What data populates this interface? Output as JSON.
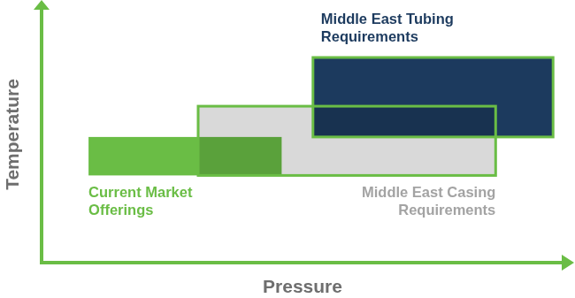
{
  "chart_data": {
    "type": "range",
    "x_label": "Pressure",
    "y_label": "Temperature",
    "xlim": [
      0,
      100
    ],
    "ylim": [
      0,
      100
    ],
    "tick_labels": false,
    "series": [
      {
        "label": [
          "Current Market",
          "Offerings"
        ],
        "color": "#6abd45",
        "x": [
          9,
          46
        ],
        "y": [
          34,
          49
        ]
      },
      {
        "label": [
          "Middle East Casing",
          "Requirements"
        ],
        "color": "#d9d9d9",
        "x": [
          30,
          87
        ],
        "y": [
          34,
          61
        ]
      },
      {
        "label": [
          "Middle East Tubing",
          "Requirements"
        ],
        "color": "#1c3a5e",
        "x": [
          52,
          98
        ],
        "y": [
          49,
          80
        ]
      }
    ]
  }
}
